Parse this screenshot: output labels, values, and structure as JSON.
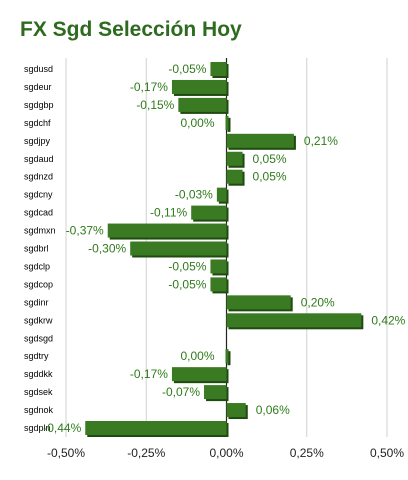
{
  "title": "FX Sgd Selección Hoy",
  "chart_data": {
    "type": "bar",
    "orientation": "horizontal",
    "title": "FX Sgd Selección Hoy",
    "categories": [
      "sgdusd",
      "sgdeur",
      "sgdgbp",
      "sgdchf",
      "sgdjpy",
      "sgdaud",
      "sgdnzd",
      "sgdcny",
      "sgdcad",
      "sgdmxn",
      "sgdbrl",
      "sgdclp",
      "sgdcop",
      "sgdinr",
      "sgdkrw",
      "sgdsgd",
      "sgdtry",
      "sgddkk",
      "sgdsek",
      "sgdnok",
      "sgdpln"
    ],
    "values": [
      -0.05,
      -0.17,
      -0.15,
      0.0,
      0.21,
      0.05,
      0.05,
      -0.03,
      -0.11,
      -0.37,
      -0.3,
      -0.05,
      -0.05,
      0.2,
      0.42,
      null,
      0.0,
      -0.17,
      -0.07,
      0.06,
      -0.44
    ],
    "value_labels": [
      "-0,05%",
      "-0,17%",
      "-0,15%",
      "0,00%",
      "0,21%",
      "0,05%",
      "0,05%",
      "-0,03%",
      "-0,11%",
      "-0,37%",
      "-0,30%",
      "-0,05%",
      "-0,05%",
      "0,20%",
      "0,42%",
      "",
      "0,00%",
      "-0,17%",
      "-0,07%",
      "0,06%",
      "-0,44%"
    ],
    "xlim": [
      -0.5,
      0.5
    ],
    "xticks": [
      -0.5,
      -0.25,
      0,
      0.25,
      0.5
    ],
    "xtick_labels": [
      "-0,50%",
      "-0,25%",
      "0,00%",
      "0,25%",
      "0,50%"
    ],
    "grid": true,
    "bar_color": "#3a7a22",
    "bar_shadow_color": "#1f4a10",
    "label_color": "#2f7a1b",
    "title_color": "#2e6a1f"
  }
}
